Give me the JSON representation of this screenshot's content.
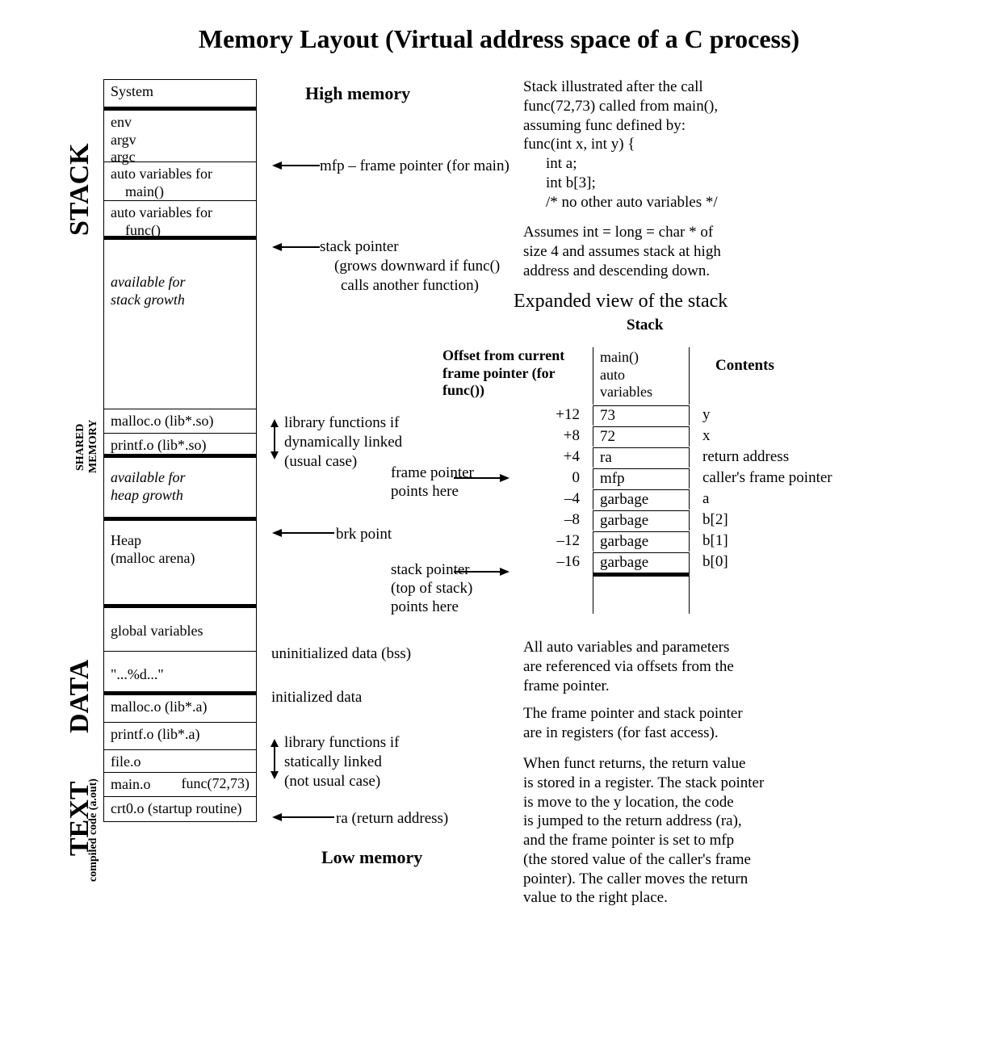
{
  "title": "Memory Layout  (Virtual address space of a C process)",
  "colors": {
    "bg": "#ffffff",
    "fg": "#000000"
  },
  "fonts": {
    "family": "Times New Roman",
    "title_size_pt": 24,
    "body_size_pt": 14
  },
  "section_labels": {
    "stack": "STACK",
    "shared": "SHARED",
    "memory": "MEMORY",
    "data": "DATA",
    "text": "TEXT",
    "compiled": "compiled code (a.out)"
  },
  "memcol": {
    "system": "System",
    "env": "env",
    "argv": "argv",
    "argc": "argc",
    "auto_main_1": "auto variables for",
    "auto_main_2": "main()",
    "auto_func_1": "auto variables for",
    "auto_func_2": "func()",
    "avail_stack_1": "available for",
    "avail_stack_2": "stack growth",
    "malloc_so": "malloc.o (lib*.so)",
    "printf_so": "printf.o (lib*.so)",
    "avail_heap_1": "available for",
    "avail_heap_2": "heap growth",
    "heap_1": "Heap",
    "heap_2": "(malloc arena)",
    "globals": "global variables",
    "initdata": "\"...%d...\"",
    "malloc_a": "malloc.o (lib*.a)",
    "printf_a": "printf.o (lib*.a)",
    "file_o": "file.o",
    "main_o": "main.o",
    "main_o_func": "func(72,73)",
    "crt0": "crt0.o (startup routine)"
  },
  "mid": {
    "high": "High memory",
    "mfp": "mfp – frame pointer (for main)",
    "sp1": "stack pointer",
    "sp2": "(grows downward if func()",
    "sp3": "calls another function)",
    "dynlib1": "library functions if",
    "dynlib2": "dynamically linked",
    "dynlib3": "(usual case)",
    "brk": "brk point",
    "bss": "uninitialized data (bss)",
    "init": "initialized data",
    "statlib1": "library functions if",
    "statlib2": "statically linked",
    "statlib3": "(not usual case)",
    "ra": "ra (return address)",
    "low": "Low memory"
  },
  "right": {
    "desc1_l1": "Stack illustrated after the call",
    "desc1_l2": "func(72,73) called from main(),",
    "desc1_l3": "assuming func defined by:",
    "desc1_l4": " func(int x, int y) {",
    "desc1_l5": "int a;",
    "desc1_l6": "int b[3];",
    "desc1_l7": "/* no other auto variables */",
    "desc2_l1": "Assumes int = long = char * of",
    "desc2_l2": "size 4 and assumes stack at high",
    "desc2_l3": "address and descending down.",
    "expanded": "Expanded view of the stack",
    "p1_l1": "All auto variables and parameters",
    "p1_l2": "are referenced via offsets from the",
    "p1_l3": "frame pointer.",
    "p2_l1": "The frame pointer and stack pointer",
    "p2_l2": "are in registers (for fast access).",
    "p3_l1": "When funct returns, the return value",
    "p3_l2": "is stored in a register.  The stack pointer",
    "p3_l3": "is move to  the y location, the code",
    "p3_l4": "is jumped to the return address (ra),",
    "p3_l5": "and the frame pointer is set to mfp",
    "p3_l6": "(the stored value of the caller's frame",
    "p3_l7": "pointer). The caller moves the return",
    "p3_l8": "value to the right place."
  },
  "stack_table": {
    "stack_label": "Stack",
    "offset_header": "Offset from current frame pointer (for func())",
    "contents_header": "Contents",
    "head_cell_l1": "main()",
    "head_cell_l2": "auto",
    "head_cell_l3": "variables",
    "fp_note_l1": "frame pointer",
    "fp_note_l2": "points here",
    "sp_note_l1": "stack pointer",
    "sp_note_l2": "(top of stack)",
    "sp_note_l3": "points here",
    "rows": [
      {
        "offset": "+12",
        "value": "73",
        "contents": "y"
      },
      {
        "offset": "+8",
        "value": "72",
        "contents": "x"
      },
      {
        "offset": "+4",
        "value": "ra",
        "contents": "return address"
      },
      {
        "offset": "0",
        "value": "mfp",
        "contents": "caller's frame pointer"
      },
      {
        "offset": "–4",
        "value": "garbage",
        "contents": "a"
      },
      {
        "offset": "–8",
        "value": "garbage",
        "contents": "b[2]"
      },
      {
        "offset": "–12",
        "value": "garbage",
        "contents": "b[1]"
      },
      {
        "offset": "–16",
        "value": "garbage",
        "contents": "b[0]"
      }
    ]
  }
}
